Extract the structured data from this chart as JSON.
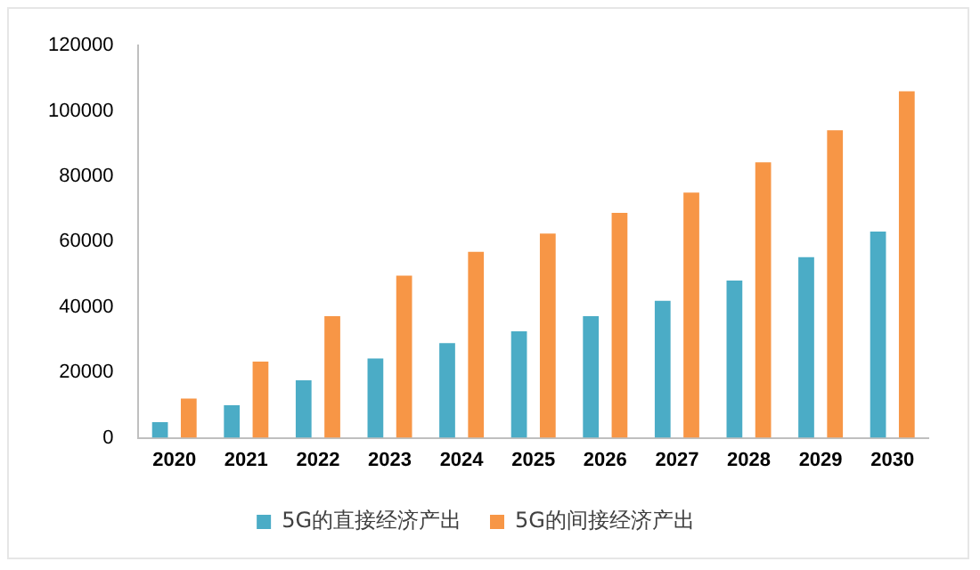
{
  "chart_data": {
    "type": "bar",
    "categories": [
      "2020",
      "2021",
      "2022",
      "2023",
      "2024",
      "2025",
      "2026",
      "2027",
      "2028",
      "2029",
      "2030"
    ],
    "series": [
      {
        "name": "5G的直接经济产出",
        "color": "#4bacc6",
        "values": [
          4800,
          10000,
          17600,
          24300,
          29000,
          32600,
          37200,
          41900,
          48100,
          55300,
          63100
        ]
      },
      {
        "name": "5G的间接经济产出",
        "color": "#f79646",
        "values": [
          12000,
          23300,
          37200,
          49600,
          56900,
          62500,
          68800,
          75000,
          84300,
          94100,
          106000
        ]
      }
    ],
    "ylim": [
      0,
      120000
    ],
    "yticks": [
      0,
      20000,
      40000,
      60000,
      80000,
      100000,
      120000
    ],
    "grid": false,
    "legend": "bottom"
  }
}
